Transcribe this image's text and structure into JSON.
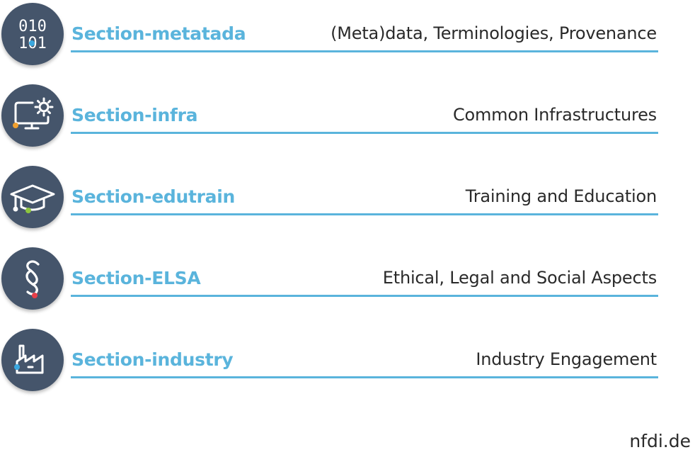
{
  "colors": {
    "accent": "#5ab4dc",
    "badge": "#45556b",
    "dot_blue": "#3aa8e0",
    "dot_orange": "#f0a030",
    "dot_green": "#8dc63f",
    "dot_red": "#e8404a"
  },
  "sections": [
    {
      "name": "Section-metatada",
      "description": "(Meta)data, Terminologies, Provenance",
      "icon": "binary-code-icon",
      "icon_text": [
        "010",
        "101"
      ]
    },
    {
      "name": "Section-infra",
      "description": "Common Infrastructures",
      "icon": "computer-gear-icon"
    },
    {
      "name": "Section-edutrain",
      "description": "Training and Education",
      "icon": "graduation-cap-icon"
    },
    {
      "name": "Section-ELSA",
      "description": "Ethical, Legal and Social Aspects",
      "icon": "paragraph-sign-icon"
    },
    {
      "name": "Section-industry",
      "description": "Industry Engagement",
      "icon": "factory-icon"
    }
  ],
  "footer": {
    "url": "nfdi.de"
  }
}
